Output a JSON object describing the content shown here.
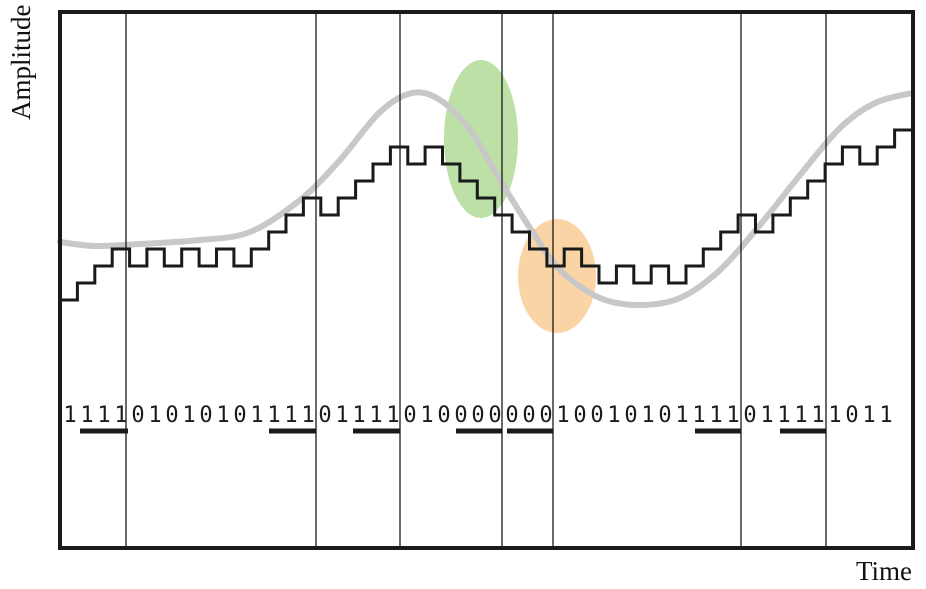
{
  "axes": {
    "ylabel": "Amplitude",
    "xlabel": "Time"
  },
  "bit_string": "1111010101011110111101000000010010101111011111011",
  "colors": {
    "frame": "#1a1a1a",
    "staircase": "#1a1a1a",
    "reference_curve": "#c8c8c8",
    "slope_overload_ellipse": "#b5dd9b",
    "granular_noise_ellipse": "#f9cf9a"
  }
}
